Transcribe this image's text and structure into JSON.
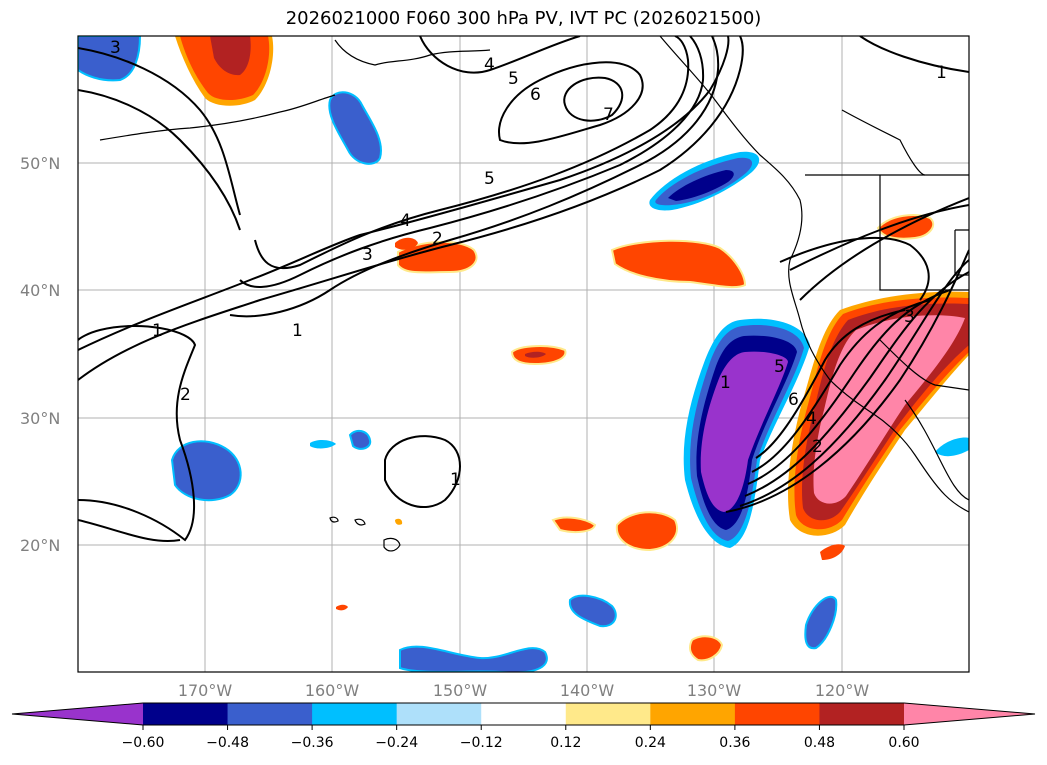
{
  "title": "2026021000 F060 300 hPa PV, IVT PC (2026021500)",
  "lat_labels": [
    "50°N",
    "40°N",
    "30°N",
    "20°N"
  ],
  "lon_labels": [
    "170°W",
    "160°W",
    "150°W",
    "140°W",
    "130°W",
    "120°W"
  ],
  "colorbar": {
    "ticks": [
      "−0.60",
      "−0.48",
      "−0.36",
      "−0.24",
      "−0.12",
      "0.12",
      "0.24",
      "0.36",
      "0.48",
      "0.60"
    ],
    "colors": [
      "#9933cc",
      "#00008b",
      "#3a5fcd",
      "#00bfff",
      "#aee0fa",
      "#ffffff",
      "#ffe98a",
      "#ffa500",
      "#ff4500",
      "#b22222",
      "#ff85a8"
    ]
  },
  "contour_labels": [
    "1",
    "2",
    "3",
    "4",
    "5",
    "6",
    "7"
  ]
}
